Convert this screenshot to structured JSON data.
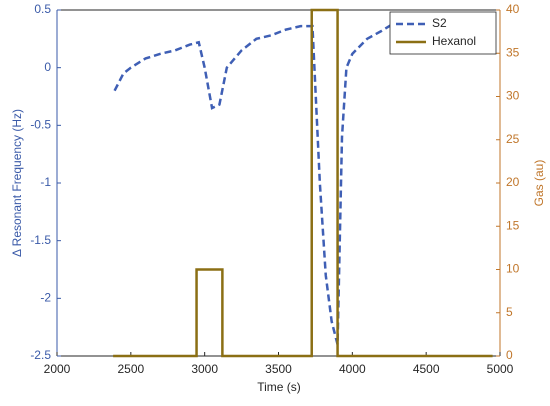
{
  "chart_data": {
    "type": "line",
    "xlabel": "Time (s)",
    "ylabel": "Δ Resonant Frequency (Hz)",
    "y2label": "Gas (au)",
    "xlim": [
      2000,
      5000
    ],
    "xticks": [
      2000,
      2500,
      3000,
      3500,
      4000,
      4500,
      5000
    ],
    "ylim": [
      -2.5,
      0.5
    ],
    "yticks": [
      -2.5,
      -2,
      -1.5,
      -1,
      -0.5,
      0,
      0.5
    ],
    "y2lim": [
      0,
      40
    ],
    "y2ticks": [
      0,
      5,
      10,
      15,
      20,
      25,
      30,
      35,
      40
    ],
    "legend": "upper right",
    "series": [
      {
        "name": "S2",
        "color": "#3f5fb5",
        "dash": true,
        "x": [
          2390,
          2450,
          2500,
          2600,
          2700,
          2800,
          2900,
          2960,
          3000,
          3050,
          3100,
          3150,
          3250,
          3350,
          3450,
          3550,
          3650,
          3730,
          3780,
          3820,
          3860,
          3900,
          3930,
          3960,
          4000,
          4100,
          4200,
          4300,
          4400,
          4480
        ],
        "values": [
          -0.2,
          -0.05,
          0.0,
          0.08,
          0.12,
          0.15,
          0.2,
          0.22,
          0.0,
          -0.35,
          -0.32,
          0.0,
          0.15,
          0.25,
          0.28,
          0.33,
          0.36,
          0.36,
          -1.0,
          -1.8,
          -2.2,
          -2.4,
          -0.6,
          0.0,
          0.12,
          0.25,
          0.32,
          0.4,
          0.44,
          0.46
        ]
      },
      {
        "name": "Hexanol",
        "color": "#8b6f14",
        "axis": "y2",
        "x": [
          2380,
          2945,
          2945,
          3120,
          3120,
          3725,
          3725,
          3900,
          3900,
          4950
        ],
        "values": [
          0,
          0,
          10,
          10,
          0,
          0,
          40,
          40,
          0,
          0
        ]
      }
    ]
  }
}
